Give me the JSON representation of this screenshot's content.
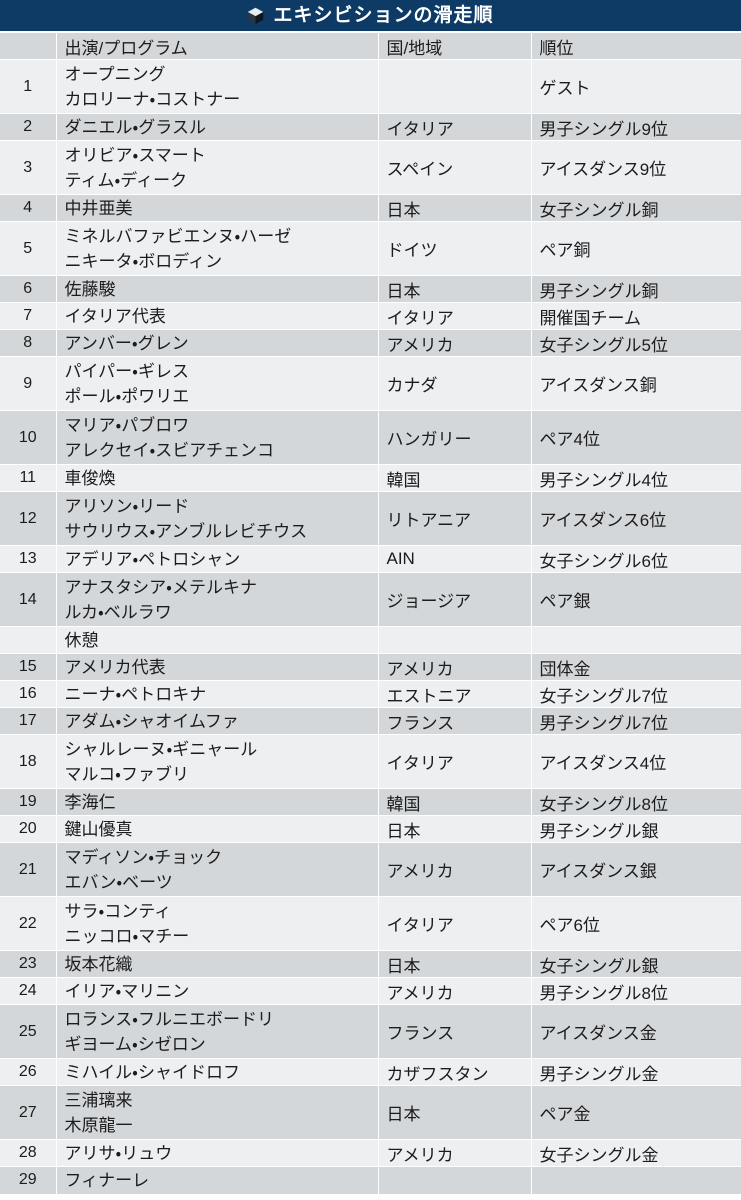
{
  "header": {
    "title": "エキシビションの滑走順",
    "icon": "cube-icon",
    "bg_color": "#0e3a66",
    "text_color": "#ffffff"
  },
  "table": {
    "columns": [
      {
        "key": "no",
        "label": ""
      },
      {
        "key": "program",
        "label": "出演/プログラム"
      },
      {
        "key": "country",
        "label": "国/地域"
      },
      {
        "key": "rank",
        "label": "順位"
      }
    ],
    "row_colors": {
      "light": "#edeff1",
      "gray": "#d3d7da",
      "separator": "#ffffff"
    },
    "rows": [
      {
        "no": "1",
        "program": [
          "オープニング",
          "カロリーナ・コストナー"
        ],
        "country": "",
        "rank": "ゲスト"
      },
      {
        "no": "2",
        "program": [
          "ダニエル・グラスル"
        ],
        "country": "イタリア",
        "rank": "男子シングル9位"
      },
      {
        "no": "3",
        "program": [
          "オリビア・スマート",
          "ティム・ディーク"
        ],
        "country": "スペイン",
        "rank": "アイスダンス9位"
      },
      {
        "no": "4",
        "program": [
          "中井亜美"
        ],
        "country": "日本",
        "rank": "女子シングル銅"
      },
      {
        "no": "5",
        "program": [
          "ミネルバファビエンヌ・ハーゼ",
          "ニキータ・ボロディン"
        ],
        "country": "ドイツ",
        "rank": "ペア銅"
      },
      {
        "no": "6",
        "program": [
          "佐藤駿"
        ],
        "country": "日本",
        "rank": "男子シングル銅"
      },
      {
        "no": "7",
        "program": [
          "イタリア代表"
        ],
        "country": "イタリア",
        "rank": "開催国チーム"
      },
      {
        "no": "8",
        "program": [
          "アンバー・グレン"
        ],
        "country": "アメリカ",
        "rank": "女子シングル5位"
      },
      {
        "no": "9",
        "program": [
          "パイパー・ギレス",
          "ポール・ポワリエ"
        ],
        "country": "カナダ",
        "rank": "アイスダンス銅"
      },
      {
        "no": "10",
        "program": [
          "マリア・パブロワ",
          "アレクセイ・スビアチェンコ"
        ],
        "country": "ハンガリー",
        "rank": "ペア4位"
      },
      {
        "no": "11",
        "program": [
          "車俊煥"
        ],
        "country": "韓国",
        "rank": "男子シングル4位"
      },
      {
        "no": "12",
        "program": [
          "アリソン・リード",
          "サウリウス・アンブルレビチウス"
        ],
        "country": "リトアニア",
        "rank": "アイスダンス6位"
      },
      {
        "no": "13",
        "program": [
          "アデリア・ペトロシャン"
        ],
        "country": "AIN",
        "rank": "女子シングル6位"
      },
      {
        "no": "14",
        "program": [
          "アナスタシア・メテルキナ",
          "ルカ・ベルラワ"
        ],
        "country": "ジョージア",
        "rank": "ペア銀"
      },
      {
        "no": "",
        "program": [
          "休憩"
        ],
        "country": "",
        "rank": ""
      },
      {
        "no": "15",
        "program": [
          "アメリカ代表"
        ],
        "country": "アメリカ",
        "rank": "団体金"
      },
      {
        "no": "16",
        "program": [
          "ニーナ・ペトロキナ"
        ],
        "country": "エストニア",
        "rank": "女子シングル7位"
      },
      {
        "no": "17",
        "program": [
          "アダム・シャオイムファ"
        ],
        "country": "フランス",
        "rank": "男子シングル7位"
      },
      {
        "no": "18",
        "program": [
          "シャルレーヌ・ギニャール",
          "マルコ・ファブリ"
        ],
        "country": "イタリア",
        "rank": "アイスダンス4位"
      },
      {
        "no": "19",
        "program": [
          "李海仁"
        ],
        "country": "韓国",
        "rank": "女子シングル8位"
      },
      {
        "no": "20",
        "program": [
          "鍵山優真"
        ],
        "country": "日本",
        "rank": "男子シングル銀"
      },
      {
        "no": "21",
        "program": [
          "マディソン・チョック",
          "エバン・ベーツ"
        ],
        "country": "アメリカ",
        "rank": "アイスダンス銀"
      },
      {
        "no": "22",
        "program": [
          "サラ・コンティ",
          "ニッコロ・マチー"
        ],
        "country": "イタリア",
        "rank": "ペア6位"
      },
      {
        "no": "23",
        "program": [
          "坂本花織"
        ],
        "country": "日本",
        "rank": "女子シングル銀"
      },
      {
        "no": "24",
        "program": [
          "イリア・マリニン"
        ],
        "country": "アメリカ",
        "rank": "男子シングル8位"
      },
      {
        "no": "25",
        "program": [
          "ロランス・フルニエボードリ",
          "ギヨーム・シゼロン"
        ],
        "country": "フランス",
        "rank": "アイスダンス金"
      },
      {
        "no": "26",
        "program": [
          "ミハイル・シャイドロフ"
        ],
        "country": "カザフスタン",
        "rank": "男子シングル金"
      },
      {
        "no": "27",
        "program": [
          "三浦璃来",
          "木原龍一"
        ],
        "country": "日本",
        "rank": "ペア金"
      },
      {
        "no": "28",
        "program": [
          "アリサ・リュウ"
        ],
        "country": "アメリカ",
        "rank": "女子シングル金"
      },
      {
        "no": "29",
        "program": [
          "フィナーレ"
        ],
        "country": "",
        "rank": ""
      }
    ]
  }
}
